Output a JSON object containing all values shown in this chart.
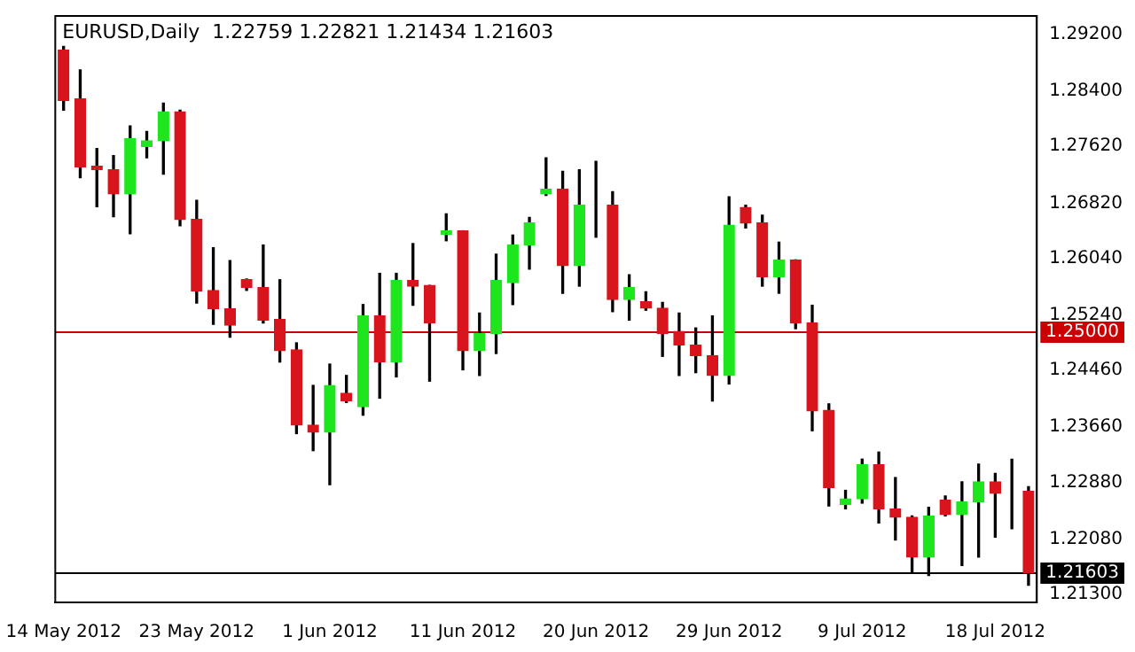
{
  "chart_data": {
    "type": "candlestick",
    "title": "EURUSD,Daily  1.22759 1.22821 1.21434 1.21603",
    "categories": [
      "14 May 2012",
      null,
      null,
      null,
      null,
      null,
      null,
      null,
      "23 May 2012",
      null,
      null,
      null,
      null,
      null,
      null,
      null,
      "1 Jun 2012",
      null,
      null,
      null,
      null,
      null,
      null,
      null,
      "11 Jun 2012",
      null,
      null,
      null,
      null,
      null,
      null,
      null,
      "20 Jun 2012",
      null,
      null,
      null,
      null,
      null,
      null,
      null,
      "29 Jun 2012",
      null,
      null,
      null,
      null,
      null,
      null,
      null,
      "9 Jul 2012",
      null,
      null,
      null,
      null,
      null,
      null,
      null,
      "18 Jul 2012",
      null,
      null
    ],
    "ohlc": [
      [
        1.2898,
        1.2903,
        1.2813,
        1.2827
      ],
      [
        1.2829,
        1.287,
        1.2718,
        1.2733
      ],
      [
        1.2734,
        1.2759,
        1.2677,
        1.2729
      ],
      [
        1.2729,
        1.2749,
        1.2663,
        1.2695
      ],
      [
        1.2695,
        1.2791,
        1.2639,
        1.2773
      ],
      [
        1.2762,
        1.2783,
        1.2746,
        1.277
      ],
      [
        1.277,
        1.2823,
        1.2723,
        1.2811
      ],
      [
        1.2811,
        1.2813,
        1.265,
        1.2659
      ],
      [
        1.2659,
        1.2686,
        1.2541,
        1.2558
      ],
      [
        1.2559,
        1.2619,
        1.2511,
        1.2533
      ],
      [
        1.2533,
        1.2601,
        1.2493,
        1.251
      ],
      [
        1.2574,
        1.2575,
        1.2559,
        1.2563
      ],
      [
        1.2563,
        1.2623,
        1.2513,
        1.2517
      ],
      [
        1.2518,
        1.2574,
        1.2458,
        1.2474
      ],
      [
        1.2475,
        1.2485,
        1.2357,
        1.2369
      ],
      [
        1.2369,
        1.2425,
        1.2333,
        1.2359
      ],
      [
        1.2359,
        1.2455,
        1.2285,
        1.2425
      ],
      [
        1.2414,
        1.2439,
        1.2401,
        1.2403
      ],
      [
        1.2395,
        1.2539,
        1.2383,
        1.2523
      ],
      [
        1.2523,
        1.2583,
        1.2407,
        1.2458
      ],
      [
        1.2458,
        1.2583,
        1.2437,
        1.2573
      ],
      [
        1.2573,
        1.2625,
        1.2538,
        1.2565
      ],
      [
        1.2566,
        1.2566,
        1.2431,
        1.2513
      ],
      [
        1.2638,
        1.2667,
        1.2629,
        1.2643
      ],
      [
        1.2643,
        1.2643,
        1.2447,
        1.2474
      ],
      [
        1.2474,
        1.2527,
        1.2439,
        1.2498
      ],
      [
        1.2498,
        1.261,
        1.247,
        1.2573
      ],
      [
        1.257,
        1.2637,
        1.2539,
        1.2623
      ],
      [
        1.2623,
        1.2662,
        1.2589,
        1.2654
      ],
      [
        1.2695,
        1.2746,
        1.2693,
        1.2702
      ],
      [
        1.2702,
        1.2727,
        1.2555,
        1.2594
      ],
      [
        1.2594,
        1.2729,
        1.2565,
        1.2679
      ],
      [
        1.2679,
        1.2741,
        1.2634,
        1.2679
      ],
      [
        1.2679,
        1.2698,
        1.2529,
        1.2546
      ],
      [
        1.2546,
        1.2581,
        1.2517,
        1.2563
      ],
      [
        1.2543,
        1.2557,
        1.2531,
        1.2534
      ],
      [
        1.2534,
        1.2542,
        1.2466,
        1.2498
      ],
      [
        1.2501,
        1.2527,
        1.2439,
        1.2482
      ],
      [
        1.2482,
        1.2506,
        1.2443,
        1.2467
      ],
      [
        1.2467,
        1.2523,
        1.2403,
        1.2439
      ],
      [
        1.2439,
        1.2691,
        1.2427,
        1.2651
      ],
      [
        1.2676,
        1.2679,
        1.2647,
        1.2654
      ],
      [
        1.2654,
        1.2665,
        1.2565,
        1.2578
      ],
      [
        1.2578,
        1.2627,
        1.2555,
        1.2602
      ],
      [
        1.2602,
        1.2602,
        1.2505,
        1.2513
      ],
      [
        1.2513,
        1.2538,
        1.2361,
        1.2389
      ],
      [
        1.239,
        1.2399,
        1.2255,
        1.2281
      ],
      [
        1.2257,
        1.2277,
        1.2251,
        1.2265
      ],
      [
        1.2265,
        1.2321,
        1.2259,
        1.2313
      ],
      [
        1.2313,
        1.2331,
        1.2231,
        1.2251
      ],
      [
        1.2251,
        1.2295,
        1.2207,
        1.2239
      ],
      [
        1.2239,
        1.2241,
        1.2161,
        1.2183
      ],
      [
        1.2183,
        1.2253,
        1.2157,
        1.2241
      ],
      [
        1.2263,
        1.2269,
        1.2241,
        1.2243
      ],
      [
        1.2243,
        1.2289,
        1.2171,
        1.2261
      ],
      [
        1.2261,
        1.2314,
        1.2183,
        1.2289
      ],
      [
        1.2289,
        1.2301,
        1.2211,
        1.2273
      ],
      [
        1.2273,
        1.2321,
        1.2223,
        1.2273
      ],
      [
        1.22759,
        1.22821,
        1.21434,
        1.21603
      ]
    ],
    "colors": [
      "#d8141c",
      "#d8141c",
      "#d8141c",
      "#d8141c",
      "#1ee61e",
      "#1ee61e",
      "#1ee61e",
      "#d8141c",
      "#d8141c",
      "#d8141c",
      "#d8141c",
      "#d8141c",
      "#d8141c",
      "#d8141c",
      "#d8141c",
      "#d8141c",
      "#1ee61e",
      "#d8141c",
      "#1ee61e",
      "#d8141c",
      "#1ee61e",
      "#d8141c",
      "#d8141c",
      "#1ee61e",
      "#d8141c",
      "#1ee61e",
      "#1ee61e",
      "#1ee61e",
      "#1ee61e",
      "#1ee61e",
      "#d8141c",
      "#1ee61e",
      "#000000",
      "#d8141c",
      "#1ee61e",
      "#d8141c",
      "#d8141c",
      "#d8141c",
      "#d8141c",
      "#d8141c",
      "#1ee61e",
      "#d8141c",
      "#d8141c",
      "#1ee61e",
      "#d8141c",
      "#d8141c",
      "#d8141c",
      "#1ee61e",
      "#1ee61e",
      "#d8141c",
      "#d8141c",
      "#d8141c",
      "#1ee61e",
      "#d8141c",
      "#1ee61e",
      "#1ee61e",
      "#d8141c",
      "#000000",
      "#d8141c"
    ],
    "ylim": [
      1.2119,
      1.2946
    ],
    "yticks": [
      {
        "value": 1.292,
        "label": "1.29200"
      },
      {
        "value": 1.284,
        "label": "1.28400"
      },
      {
        "value": 1.2762,
        "label": "1.27620"
      },
      {
        "value": 1.2682,
        "label": "1.26820"
      },
      {
        "value": 1.2604,
        "label": "1.26040"
      },
      {
        "value": 1.2524,
        "label": "1.25240"
      },
      {
        "value": 1.2446,
        "label": "1.24460"
      },
      {
        "value": 1.2366,
        "label": "1.23660"
      },
      {
        "value": 1.2288,
        "label": "1.22880"
      },
      {
        "value": 1.2208,
        "label": "1.22080"
      },
      {
        "value": 1.213,
        "label": "1.21300"
      }
    ],
    "ref_lines": [
      {
        "axis": "y",
        "value": 1.25,
        "label": "1.25000",
        "color": "#cc0000"
      },
      {
        "axis": "y",
        "value": 1.21603,
        "label": "1.21603",
        "color": "#000000"
      }
    ]
  }
}
